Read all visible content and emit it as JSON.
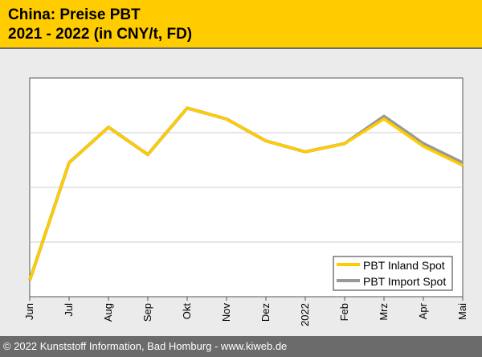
{
  "header": {
    "title_line1": "China: Preise PBT",
    "title_line2": "2021 - 2022 (in CNY/t, FD)"
  },
  "footer": {
    "copyright": "© 2022 Kunststoff Information, Bad Homburg - www.kiweb.de"
  },
  "colors": {
    "header_bg": "#ffcc00",
    "inland": "#ffcc00",
    "import": "#999999",
    "footer_bg": "#6b6b6b"
  },
  "chart_data": {
    "type": "line",
    "title": "China: Preise PBT 2021 - 2022 (in CNY/t, FD)",
    "xlabel": "",
    "ylabel": "",
    "categories": [
      "Jun",
      "Jul",
      "Aug",
      "Sep",
      "Okt",
      "Nov",
      "Dez",
      "2022",
      "Feb",
      "Mrz",
      "Apr",
      "Mai"
    ],
    "ylim": [
      0,
      4
    ],
    "grid": true,
    "legend_position": "bottom-right",
    "series": [
      {
        "name": "PBT Import Spot",
        "color": "#999999",
        "values": [
          0.3,
          2.45,
          3.1,
          2.6,
          3.45,
          3.25,
          2.85,
          2.65,
          2.8,
          3.3,
          2.8,
          2.45
        ]
      },
      {
        "name": "PBT Inland Spot",
        "color": "#ffcc00",
        "values": [
          0.3,
          2.45,
          3.1,
          2.6,
          3.45,
          3.25,
          2.85,
          2.65,
          2.8,
          3.25,
          2.75,
          2.4
        ]
      }
    ]
  }
}
